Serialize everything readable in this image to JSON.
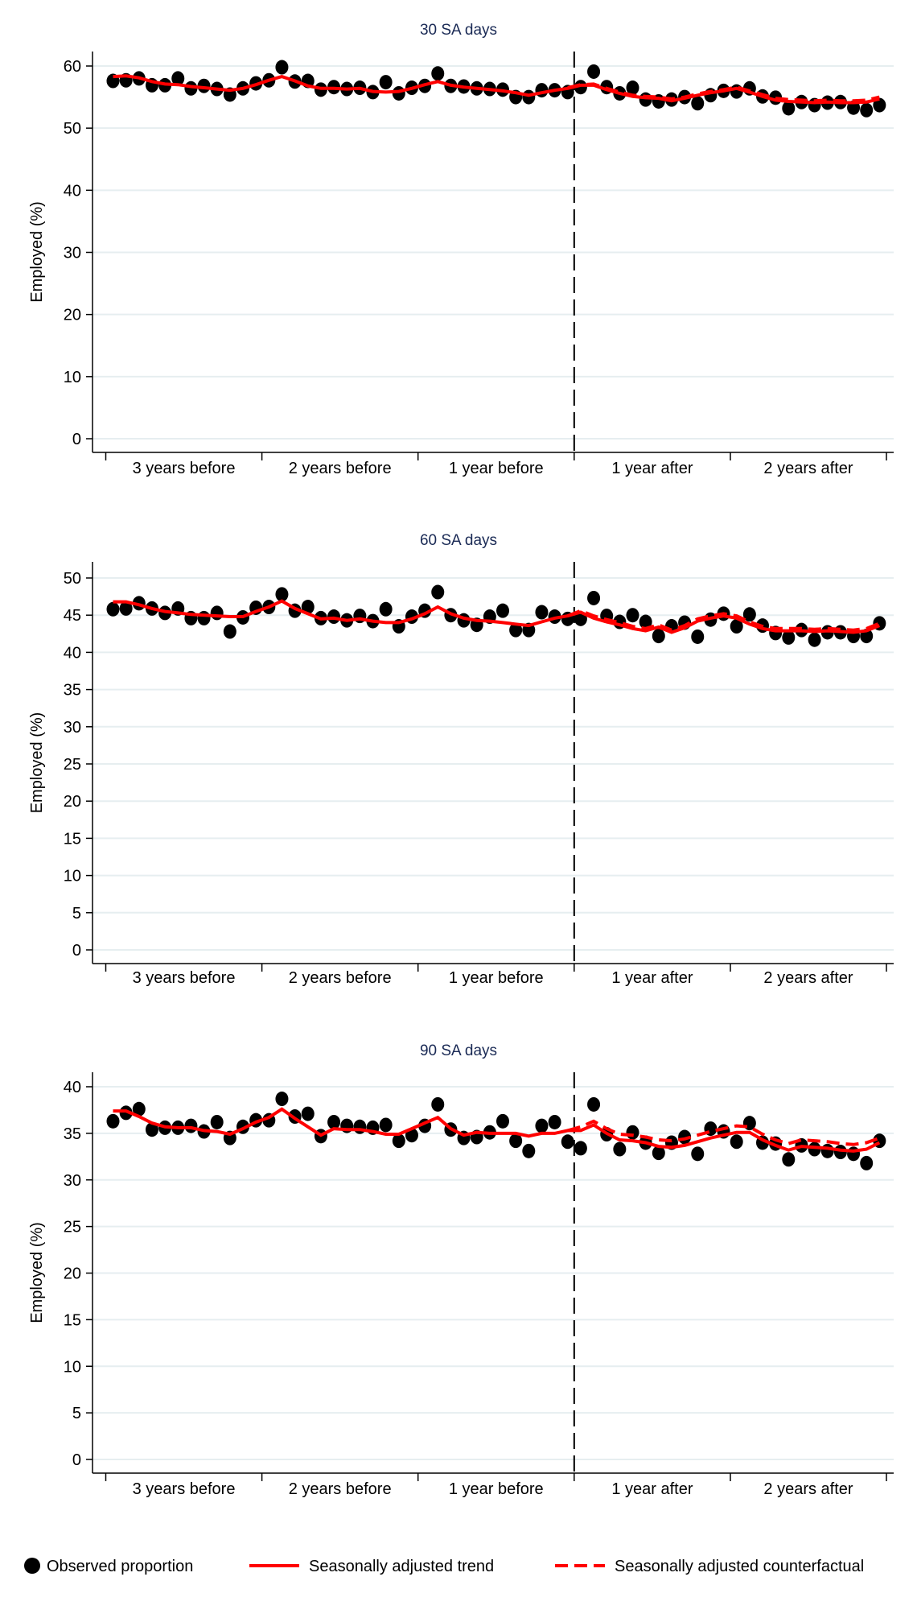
{
  "chart_data": [
    {
      "type": "scatter",
      "title": "30 SA days",
      "ylabel": "Employed (%)",
      "ylim": [
        0,
        60
      ],
      "yticks": [
        0,
        10,
        20,
        30,
        40,
        50,
        60
      ],
      "xtick_labels": [
        "3 years before",
        "2 years before",
        "1 year before",
        "1 year after",
        "2 years after"
      ],
      "grid": true,
      "intervention_month_index": 36,
      "observed": [
        57.6,
        57.7,
        58,
        56.9,
        56.9,
        58,
        56.4,
        56.8,
        56.3,
        55.4,
        56.4,
        57.2,
        57.7,
        59.8,
        57.5,
        57.6,
        56.2,
        56.6,
        56.3,
        56.5,
        55.8,
        57.4,
        55.6,
        56.5,
        56.8,
        58.8,
        56.8,
        56.7,
        56.4,
        56.3,
        56.2,
        55,
        55,
        56.1,
        56.1,
        55.8,
        56.6,
        59.1,
        56.6,
        55.6,
        56.5,
        54.6,
        54.3,
        54.6,
        55,
        54,
        55.3,
        56,
        55.9,
        56.4,
        55.1,
        54.9,
        53.2,
        54.2,
        53.7,
        54.1,
        54.2,
        53.3,
        52.9,
        53.7
      ],
      "trend": [
        58.3,
        58.4,
        58.1,
        57.5,
        57.1,
        57,
        56.7,
        56.5,
        56.3,
        56.1,
        56.4,
        57,
        57.7,
        58.3,
        57.6,
        56.8,
        56.4,
        56.4,
        56.3,
        56.4,
        55.9,
        55.8,
        55.9,
        56.4,
        57,
        57.5,
        56.9,
        56.6,
        56.4,
        56.2,
        56,
        55.7,
        55.3,
        55.7,
        56.1,
        56.4,
        56.9,
        56.9,
        56.2,
        55.6,
        55.1,
        54.9,
        54.8,
        54.4,
        54.8,
        55.3,
        55.7,
        56,
        56.4,
        55.8,
        55.1,
        54.5,
        54.3,
        54.2,
        54.1,
        54.2,
        54.1,
        54.1,
        54.2,
        54.7
      ],
      "counterfactual": [
        null,
        null,
        null,
        null,
        null,
        null,
        null,
        null,
        null,
        null,
        null,
        null,
        null,
        null,
        null,
        null,
        null,
        null,
        null,
        null,
        null,
        null,
        null,
        null,
        null,
        null,
        null,
        null,
        null,
        null,
        null,
        null,
        null,
        null,
        null,
        56.5,
        57,
        57.1,
        56.4,
        55.8,
        55.3,
        55.1,
        55,
        54.7,
        55,
        55.5,
        55.9,
        56.2,
        56.6,
        56,
        55.4,
        54.8,
        54.6,
        54.5,
        54.4,
        54.5,
        54.4,
        54.4,
        54.5,
        55
      ]
    },
    {
      "type": "scatter",
      "title": "60 SA days",
      "ylabel": "Employed (%)",
      "ylim": [
        0,
        50
      ],
      "yticks": [
        0,
        5,
        10,
        15,
        20,
        25,
        30,
        35,
        40,
        45,
        50
      ],
      "xtick_labels": [
        "3 years before",
        "2 years before",
        "1 year before",
        "1 year after",
        "2 years after"
      ],
      "grid": true,
      "intervention_month_index": 36,
      "observed": [
        45.8,
        45.9,
        46.6,
        45.9,
        45.3,
        45.9,
        44.6,
        44.6,
        45.3,
        42.8,
        44.7,
        46,
        46.1,
        47.8,
        45.6,
        46.1,
        44.6,
        44.8,
        44.3,
        44.9,
        44.2,
        45.8,
        43.5,
        44.8,
        45.6,
        48.1,
        45,
        44.3,
        43.7,
        44.8,
        45.6,
        43,
        43,
        45.4,
        44.8,
        44.5,
        44.5,
        47.3,
        44.9,
        44.1,
        45,
        44.1,
        42.2,
        43.5,
        44,
        42.1,
        44.4,
        45.2,
        43.5,
        45.1,
        43.6,
        42.6,
        42,
        43,
        41.7,
        42.7,
        42.7,
        42.2,
        42.2,
        43.9
      ],
      "trend": [
        46.8,
        46.8,
        46.4,
        45.9,
        45.5,
        45.3,
        45.1,
        45,
        44.9,
        44.8,
        44.8,
        45.5,
        46.1,
        46.9,
        45.9,
        45.2,
        44.5,
        44.6,
        44.3,
        44.5,
        44.2,
        44,
        44,
        44.5,
        45.2,
        46.1,
        45.2,
        44.6,
        44.3,
        44.2,
        44,
        43.8,
        43.6,
        44.1,
        44.6,
        44.9,
        45.4,
        44.6,
        44.1,
        43.7,
        43.2,
        42.9,
        43.4,
        42.7,
        43.3,
        44.2,
        44.6,
        44.9,
        44.6,
        43.8,
        43.2,
        42.9,
        42.9,
        42.9,
        42.8,
        42.9,
        42.8,
        42.7,
        42.9,
        43.6
      ],
      "counterfactual": [
        null,
        null,
        null,
        null,
        null,
        null,
        null,
        null,
        null,
        null,
        null,
        null,
        null,
        null,
        null,
        null,
        null,
        null,
        null,
        null,
        null,
        null,
        null,
        null,
        null,
        null,
        null,
        null,
        null,
        null,
        null,
        null,
        null,
        null,
        null,
        44.9,
        45.6,
        44.9,
        44.4,
        44,
        43.5,
        43.2,
        43.7,
        43,
        43.6,
        44.5,
        44.9,
        45.2,
        44.9,
        44.1,
        43.5,
        43.2,
        43.2,
        43.2,
        43.1,
        43.2,
        43.1,
        43,
        43.2,
        43.9
      ]
    },
    {
      "type": "scatter",
      "title": "90 SA days",
      "ylabel": "Employed (%)",
      "ylim": [
        0,
        40
      ],
      "yticks": [
        0,
        5,
        10,
        15,
        20,
        25,
        30,
        35,
        40
      ],
      "xtick_labels": [
        "3 years before",
        "2 years before",
        "1 year before",
        "1 year after",
        "2 years after"
      ],
      "grid": true,
      "intervention_month_index": 36,
      "observed": [
        36.3,
        37.2,
        37.6,
        35.4,
        35.6,
        35.6,
        35.8,
        35.2,
        36.2,
        34.5,
        35.7,
        36.4,
        36.4,
        38.7,
        36.8,
        37.1,
        34.7,
        36.2,
        35.8,
        35.7,
        35.6,
        35.9,
        34.2,
        34.8,
        35.8,
        38.1,
        35.4,
        34.5,
        34.6,
        35.1,
        36.3,
        34.2,
        33.1,
        35.8,
        36.2,
        34.1,
        33.4,
        38.1,
        34.9,
        33.3,
        35.1,
        34,
        32.9,
        34,
        34.6,
        32.8,
        35.5,
        35.2,
        34.1,
        36.1,
        34,
        33.9,
        32.2,
        33.7,
        33.3,
        33.1,
        33,
        32.8,
        31.8,
        34.2
      ],
      "trend": [
        37.4,
        37.4,
        36.8,
        36.1,
        35.7,
        35.6,
        35.6,
        35.3,
        35.2,
        34.9,
        35.5,
        36.2,
        36.7,
        37.6,
        36.6,
        35.7,
        34.8,
        35.5,
        35.4,
        35.4,
        35.2,
        34.9,
        34.9,
        35.5,
        36.1,
        36.7,
        35.5,
        34.8,
        35.1,
        35,
        35,
        35,
        34.7,
        35,
        35,
        35.3,
        35.3,
        35.9,
        35,
        34.3,
        34.2,
        34,
        33.6,
        33.5,
        33.7,
        34.1,
        34.5,
        34.8,
        35.1,
        35.1,
        34.3,
        33.7,
        33.2,
        33.6,
        33.5,
        33.4,
        33.2,
        33.1,
        33.3,
        34
      ],
      "counterfactual": [
        null,
        null,
        null,
        null,
        null,
        null,
        null,
        null,
        null,
        null,
        null,
        null,
        null,
        null,
        null,
        null,
        null,
        null,
        null,
        null,
        null,
        null,
        null,
        null,
        null,
        null,
        null,
        null,
        null,
        null,
        null,
        null,
        null,
        null,
        null,
        35.3,
        35.7,
        36.3,
        35.5,
        34.9,
        34.8,
        34.6,
        34.3,
        34.2,
        34.4,
        34.8,
        35.2,
        35.5,
        35.8,
        35.7,
        34.9,
        34.3,
        33.9,
        34.3,
        34.2,
        34.1,
        33.9,
        33.8,
        34,
        34.5
      ]
    }
  ],
  "legend": {
    "position": "bottom",
    "items": [
      {
        "label": "Observed proportion",
        "marker": "dot"
      },
      {
        "label": "Seasonally adjusted trend",
        "marker": "solid-line"
      },
      {
        "label": "Seasonally adjusted counterfactual",
        "marker": "dashed-line"
      }
    ]
  },
  "colors": {
    "observed": "#000000",
    "trend": "#ff0000",
    "counterfactual": "#ff0000",
    "title": "#1a2a55",
    "grid": "#e6eef0"
  }
}
